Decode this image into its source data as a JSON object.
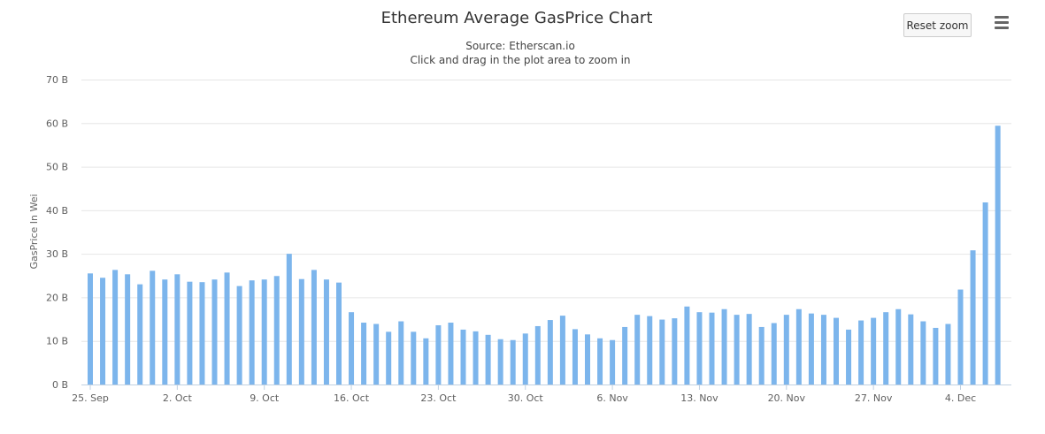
{
  "header": {
    "title": "Ethereum Average GasPrice Chart",
    "subtitle_source": "Source: Etherscan.io",
    "subtitle_hint": "Click and drag in the plot area to zoom in",
    "reset_zoom_label": "Reset zoom",
    "menu_icon": "hamburger-menu-icon"
  },
  "chart_data": {
    "type": "bar",
    "title": "Ethereum Average GasPrice Chart",
    "subtitle": "Source: Etherscan.io",
    "xlabel": "",
    "ylabel": "GasPrice In Wei",
    "ylim": [
      0,
      70
    ],
    "y_unit": "B",
    "y_ticks": [
      "0 B",
      "10 B",
      "20 B",
      "30 B",
      "40 B",
      "50 B",
      "60 B",
      "70 B"
    ],
    "x_ticks": [
      "25. Sep",
      "2. Oct",
      "9. Oct",
      "16. Oct",
      "23. Oct",
      "30. Oct",
      "6. Nov",
      "13. Nov",
      "20. Nov",
      "27. Nov",
      "4. Dec"
    ],
    "grid": true,
    "bar_color": "#7cb5ec",
    "series": [
      {
        "start_date": "2017-09-25",
        "values": [
          25.5,
          24.5,
          26.3,
          25.3,
          23.0,
          26.1,
          24.1,
          25.3,
          23.6,
          23.5,
          24.1,
          25.7,
          22.6,
          23.9,
          24.1,
          24.9,
          30.0,
          24.2,
          26.3,
          24.1,
          23.4,
          16.6,
          14.2,
          13.9,
          12.1,
          14.5,
          12.1,
          10.6,
          13.6,
          14.2,
          12.6,
          12.2,
          11.4,
          10.4,
          10.2,
          11.7,
          13.4,
          14.8,
          15.8,
          12.7,
          11.5,
          10.6,
          10.2,
          13.2,
          16.0,
          15.7,
          14.9,
          15.2,
          17.9,
          16.6,
          16.5,
          17.3,
          16.0,
          16.2,
          13.2,
          14.1,
          16.0,
          17.3,
          16.3,
          16.0,
          15.3,
          12.6,
          14.7,
          15.3,
          16.6,
          17.3,
          16.1,
          14.5,
          13.0,
          13.9,
          21.8,
          30.8,
          41.8,
          59.4
        ]
      }
    ]
  }
}
